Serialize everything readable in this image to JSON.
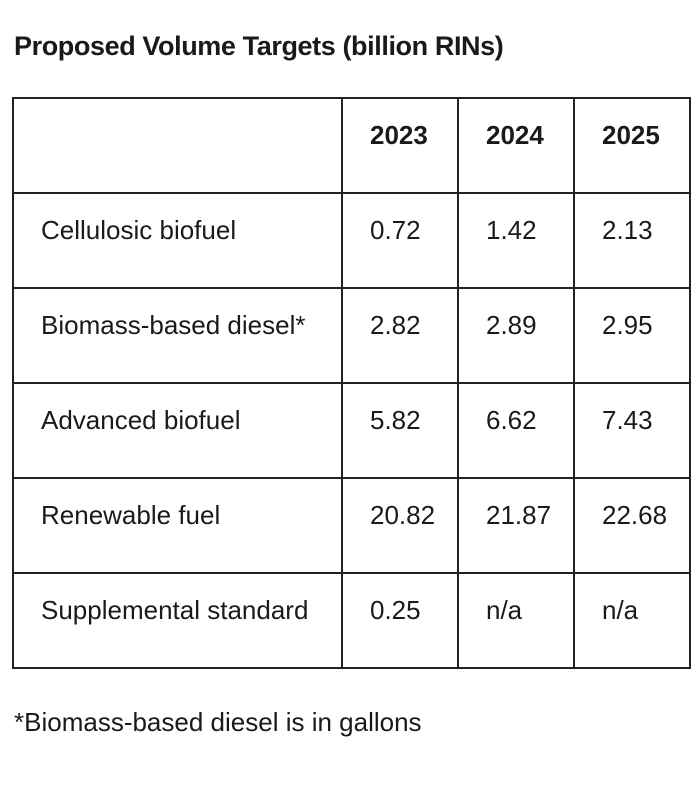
{
  "page": {
    "background": "#ffffff",
    "text_color": "#1a1a1a",
    "border_color": "#222222"
  },
  "chart_data": {
    "type": "table",
    "title": "Proposed Volume Targets (billion RINs)",
    "columns": [
      "",
      "2023",
      "2024",
      "2025"
    ],
    "rows": [
      {
        "label": "Cellulosic biofuel",
        "values": [
          "0.72",
          "1.42",
          "2.13"
        ]
      },
      {
        "label": "Biomass-based diesel*",
        "values": [
          "2.82",
          "2.89",
          "2.95"
        ]
      },
      {
        "label": "Advanced biofuel",
        "values": [
          "5.82",
          "6.62",
          "7.43"
        ]
      },
      {
        "label": "Renewable fuel",
        "values": [
          "20.82",
          "21.87",
          "22.68"
        ]
      },
      {
        "label": "Supplemental standard",
        "values": [
          "0.25",
          "n/a",
          "n/a"
        ]
      }
    ],
    "footnote": "*Biomass-based diesel is in gallons",
    "layout": {
      "grid": "on",
      "value_alignment": "left",
      "header_style": "bold"
    }
  }
}
